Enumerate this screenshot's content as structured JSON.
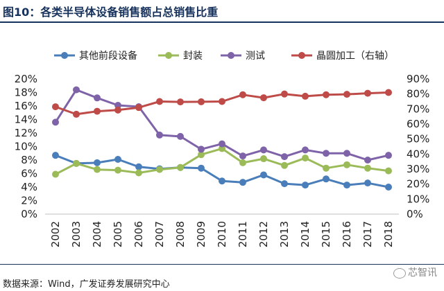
{
  "header": {
    "title": "图10：各类半导体设备销售额占总销售比重"
  },
  "footer": {
    "source": "数据来源：Wind，广发证券发展研究中心",
    "watermark": "芯智讯"
  },
  "colors": {
    "title": "#16325c",
    "series": [
      "#4a7ebb",
      "#9bbb59",
      "#7f63a8",
      "#be4b48"
    ]
  },
  "chart_data": {
    "type": "line",
    "x": [
      "2002",
      "2003",
      "2004",
      "2005",
      "2006",
      "2007",
      "2008",
      "2009",
      "2010",
      "2011",
      "2012",
      "2013",
      "2014",
      "2015",
      "2016",
      "2017",
      "2018"
    ],
    "y_left": {
      "min": 0,
      "max": 20,
      "ticks": [
        "0%",
        "2%",
        "4%",
        "6%",
        "8%",
        "10%",
        "12%",
        "14%",
        "16%",
        "18%",
        "20%"
      ]
    },
    "y_right": {
      "min": 0,
      "max": 90,
      "ticks": [
        "0%",
        "10%",
        "20%",
        "30%",
        "40%",
        "50%",
        "60%",
        "70%",
        "80%",
        "90%"
      ]
    },
    "grid": false,
    "legend_position": "top",
    "series": [
      {
        "name": "其他前段设备",
        "axis": "left",
        "values": [
          8.7,
          7.5,
          7.6,
          8.1,
          7.0,
          6.7,
          6.9,
          6.8,
          4.9,
          4.7,
          5.8,
          4.5,
          4.3,
          5.2,
          4.3,
          4.6,
          4.0
        ]
      },
      {
        "name": "封装",
        "axis": "left",
        "values": [
          5.9,
          7.5,
          6.6,
          6.5,
          6.1,
          6.6,
          6.9,
          8.8,
          9.7,
          7.6,
          8.2,
          7.2,
          8.3,
          6.8,
          7.3,
          6.8,
          6.4
        ]
      },
      {
        "name": "测试",
        "axis": "left",
        "values": [
          13.6,
          18.4,
          17.2,
          16.1,
          15.9,
          11.7,
          11.5,
          9.6,
          10.4,
          8.6,
          9.5,
          8.5,
          9.5,
          9.0,
          9.0,
          8.0,
          8.7
        ]
      },
      {
        "name": "晶圆加工（右轴）",
        "axis": "right",
        "values": [
          71.5,
          66.5,
          68.5,
          69.3,
          71.0,
          75.0,
          74.7,
          74.8,
          75.0,
          79.5,
          77.5,
          80.0,
          78.5,
          79.5,
          79.8,
          80.5,
          81.0
        ]
      }
    ]
  }
}
